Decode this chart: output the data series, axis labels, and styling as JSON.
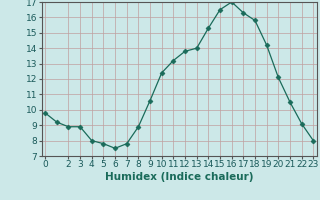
{
  "x": [
    0,
    1,
    2,
    3,
    4,
    5,
    6,
    7,
    8,
    9,
    10,
    11,
    12,
    13,
    14,
    15,
    16,
    17,
    18,
    19,
    20,
    21,
    22,
    23
  ],
  "y": [
    9.8,
    9.2,
    8.9,
    8.9,
    8.0,
    7.8,
    7.5,
    7.8,
    8.9,
    10.6,
    12.4,
    13.2,
    13.8,
    14.0,
    15.3,
    16.5,
    17.0,
    16.3,
    15.8,
    14.2,
    12.1,
    10.5,
    9.1,
    8.0
  ],
  "xlabel": "Humidex (Indice chaleur)",
  "xlim": [
    -0.3,
    23.3
  ],
  "ylim": [
    7,
    17
  ],
  "yticks": [
    7,
    8,
    9,
    10,
    11,
    12,
    13,
    14,
    15,
    16,
    17
  ],
  "xticks": [
    0,
    2,
    3,
    4,
    5,
    6,
    7,
    8,
    9,
    10,
    11,
    12,
    13,
    14,
    15,
    16,
    17,
    18,
    19,
    20,
    21,
    22,
    23
  ],
  "line_color": "#1a6b5a",
  "marker": "D",
  "marker_size": 2.5,
  "bg_color": "#cce8e8",
  "grid_color": "#c0a0a0",
  "xlabel_fontsize": 7.5,
  "tick_fontsize": 6.5
}
